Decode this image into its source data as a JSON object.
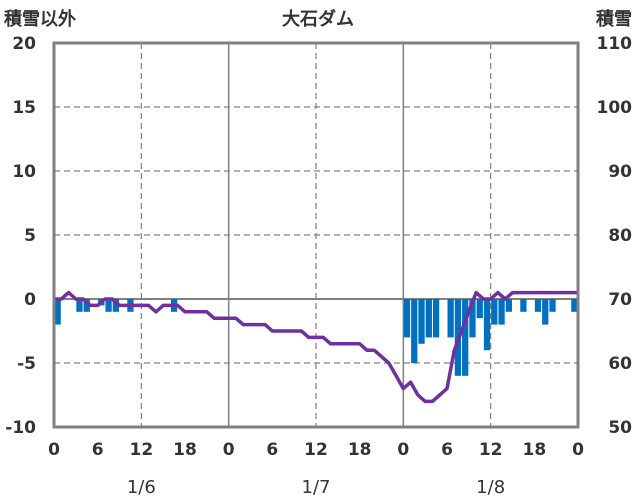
{
  "chart_data": {
    "type": "bar+line",
    "title": "大石ダム",
    "left_axis_label": "積雪以外",
    "right_axis_label": "積雪",
    "left_ylim": [
      -10,
      20
    ],
    "right_ylim": [
      50,
      110
    ],
    "left_ticks": [
      "20",
      "15",
      "10",
      "5",
      "0",
      "-5",
      "-10"
    ],
    "right_ticks": [
      "110",
      "100",
      "90",
      "80",
      "70",
      "60",
      "50"
    ],
    "x_ticks": [
      "0",
      "6",
      "12",
      "18",
      "0",
      "6",
      "12",
      "18",
      "0",
      "6",
      "12",
      "18",
      "0"
    ],
    "date_labels": [
      "1/6",
      "1/7",
      "1/8"
    ],
    "grid": true,
    "colors": {
      "bars": "#0070c0",
      "line": "#7030a0",
      "frame": "#808080",
      "grid": "#808080"
    },
    "series": [
      {
        "kind": "bar",
        "axis": "left",
        "hours": [
          0,
          1,
          2,
          3,
          4,
          5,
          6,
          7,
          8,
          9,
          10,
          11,
          12,
          13,
          14,
          15,
          16,
          17,
          18,
          19,
          20,
          21,
          22,
          23,
          24,
          25,
          26,
          27,
          28,
          29,
          30,
          31,
          32,
          33,
          34,
          35,
          36,
          37,
          38,
          39,
          40,
          41,
          42,
          43,
          44,
          45,
          46,
          47,
          48,
          49,
          50,
          51,
          52,
          53,
          54,
          55,
          56,
          57,
          58,
          59,
          60,
          61,
          62,
          63,
          64,
          65,
          66,
          67,
          68,
          69,
          70,
          71
        ],
        "values": [
          -2,
          0,
          0,
          -1,
          -1,
          0,
          -0.5,
          -1,
          -1,
          0,
          -1,
          0,
          0,
          0,
          0,
          0,
          -1,
          0,
          0,
          0,
          0,
          0,
          0,
          0,
          0,
          0,
          0,
          0,
          0,
          0,
          0,
          0,
          0,
          0,
          0,
          0,
          0,
          0,
          0,
          0,
          0,
          0,
          0,
          0,
          0,
          0,
          0,
          0,
          -3,
          -5,
          -3.5,
          -3,
          -3,
          0,
          -3,
          -6,
          -6,
          -3,
          -1.5,
          -4,
          -2,
          -2,
          -1,
          0,
          -1,
          0,
          -1,
          -2,
          -1,
          0,
          0,
          -1
        ]
      },
      {
        "kind": "line",
        "axis": "right",
        "hours": [
          0,
          1,
          2,
          3,
          4,
          5,
          6,
          7,
          8,
          9,
          10,
          11,
          12,
          13,
          14,
          15,
          16,
          17,
          18,
          19,
          20,
          21,
          22,
          23,
          24,
          25,
          26,
          27,
          28,
          29,
          30,
          31,
          32,
          33,
          34,
          35,
          36,
          37,
          38,
          39,
          40,
          41,
          42,
          43,
          44,
          45,
          46,
          47,
          48,
          49,
          50,
          51,
          52,
          53,
          54,
          55,
          56,
          57,
          58,
          59,
          60,
          61,
          62,
          63,
          64,
          65,
          66,
          67,
          68,
          69,
          70,
          71,
          72
        ],
        "values": [
          70,
          70,
          71,
          70,
          70,
          69,
          69,
          70,
          70,
          69,
          69,
          69,
          69,
          69,
          68,
          69,
          69,
          69,
          68,
          68,
          68,
          68,
          67,
          67,
          67,
          67,
          66,
          66,
          66,
          66,
          65,
          65,
          65,
          65,
          65,
          64,
          64,
          64,
          63,
          63,
          63,
          63,
          63,
          62,
          62,
          61,
          60,
          58,
          56,
          57,
          55,
          54,
          54,
          55,
          56,
          62,
          65,
          68,
          71,
          70,
          70,
          71,
          70,
          71,
          71,
          71,
          71,
          71,
          71,
          71,
          71,
          71,
          71
        ]
      }
    ]
  }
}
